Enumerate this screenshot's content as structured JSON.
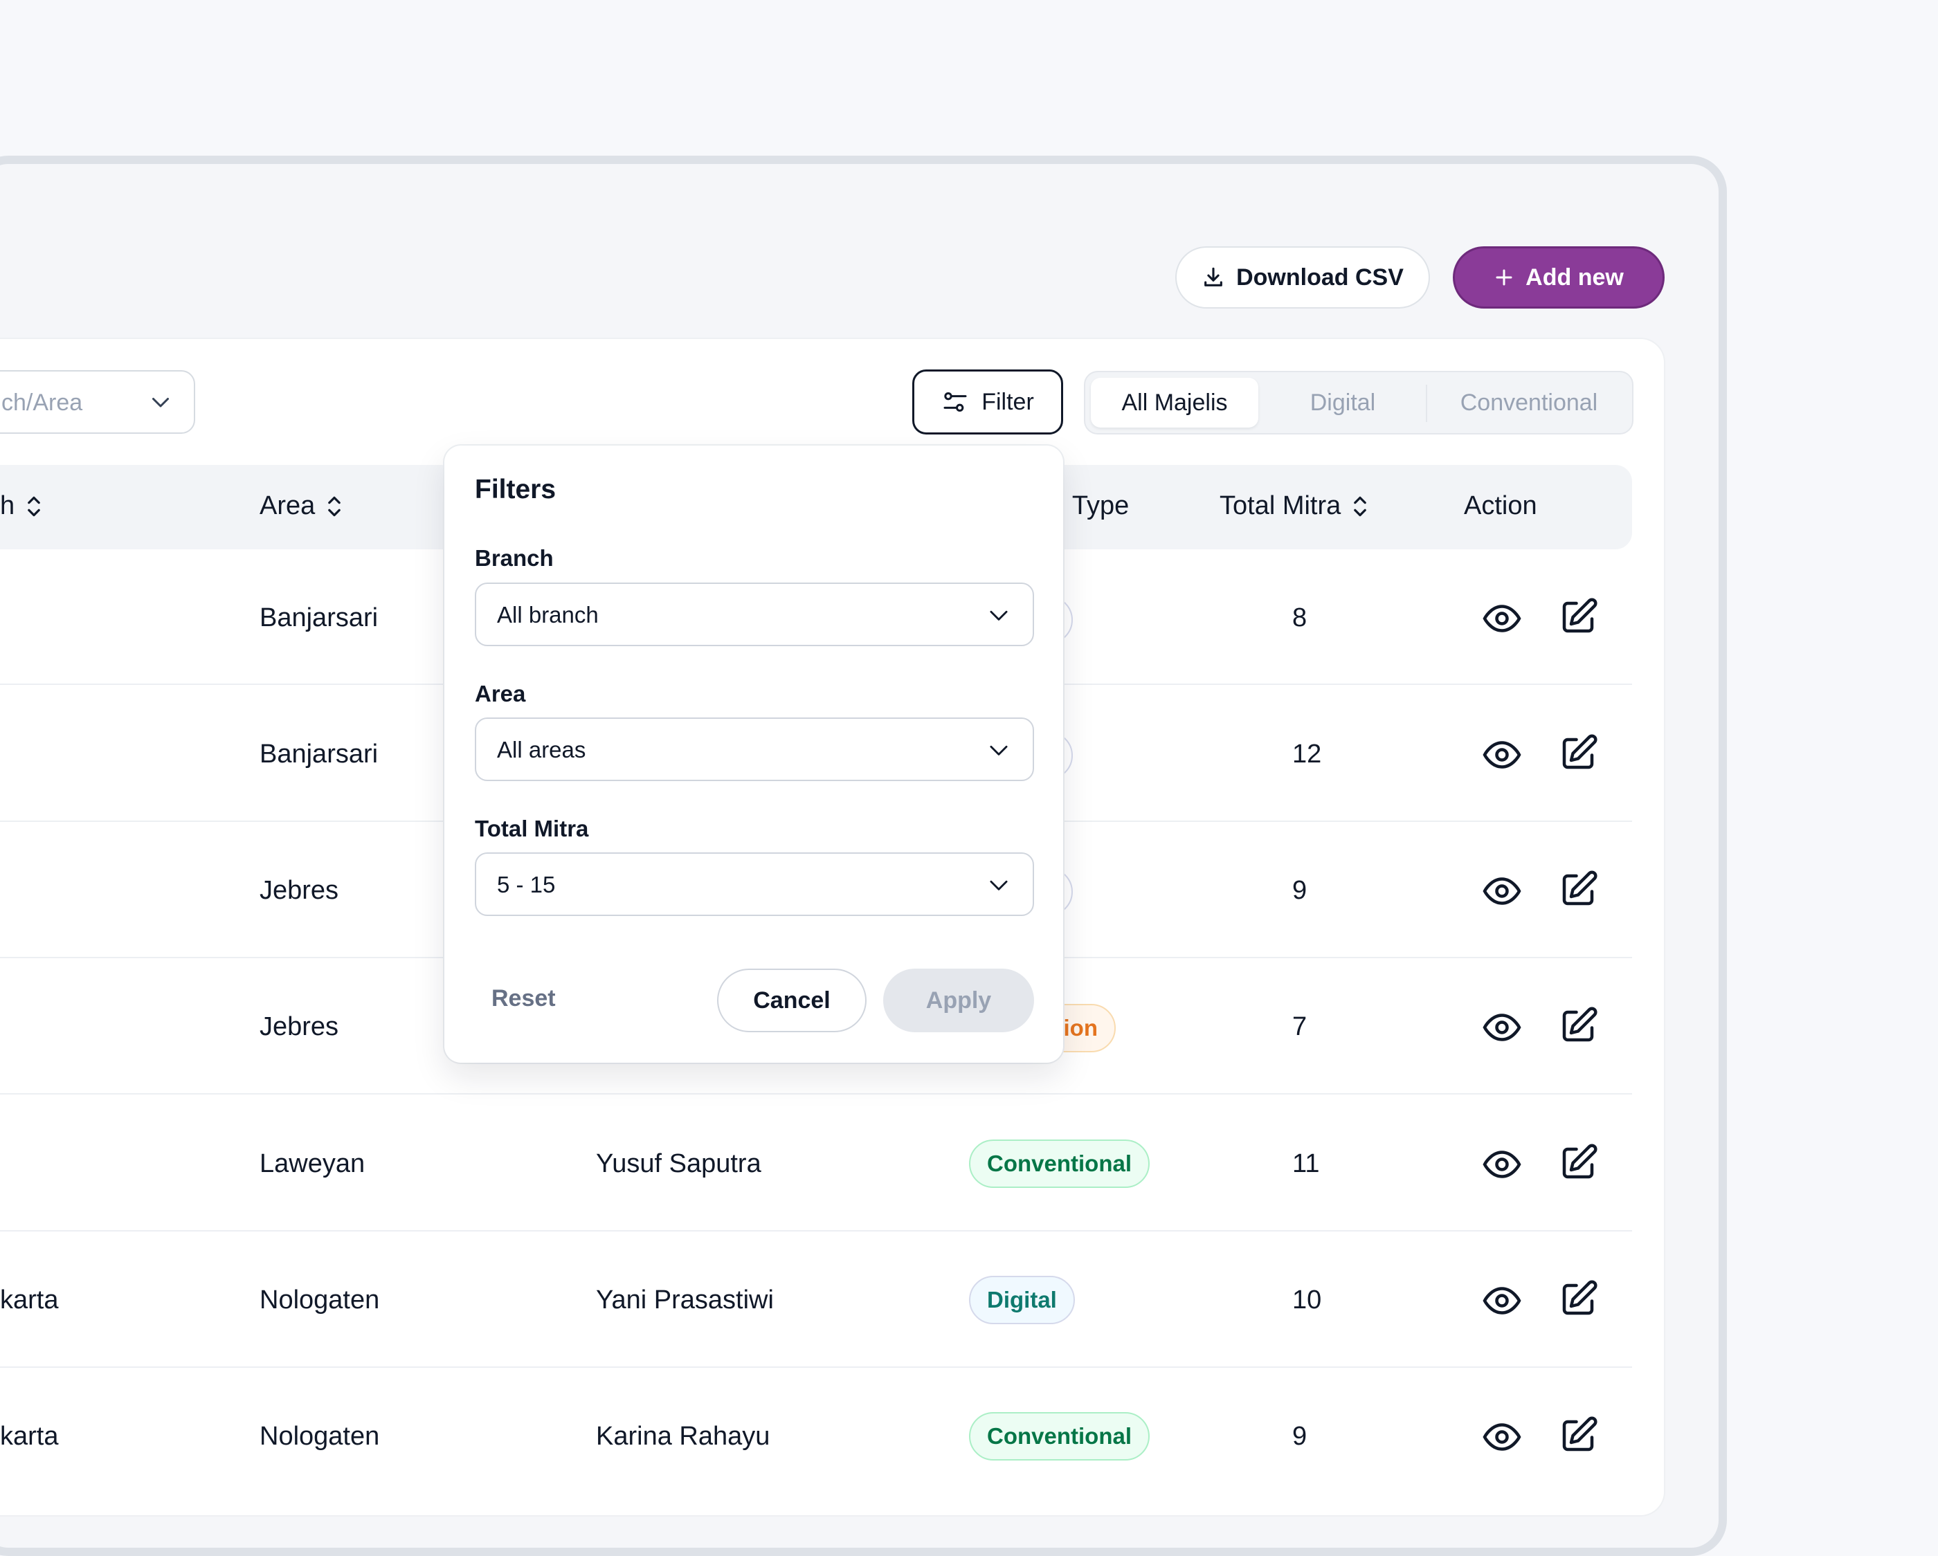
{
  "toolbar": {
    "download_label": "Download CSV",
    "add_label": "Add new"
  },
  "filters_bar": {
    "branch_area_select": "ch/Area",
    "filter_label": "Filter",
    "tabs": [
      {
        "label": "All Majelis",
        "active": true
      },
      {
        "label": "Digital",
        "active": false
      },
      {
        "label": "Conventional",
        "active": false
      }
    ]
  },
  "table": {
    "headers": {
      "branch": "h",
      "area": "Area",
      "type": "s Type",
      "total_mitra": "Total Mitra",
      "action": "Action"
    },
    "rows": [
      {
        "branch": "",
        "area": "Banjarsari",
        "name": "",
        "type": "",
        "total": "8"
      },
      {
        "branch": "",
        "area": "Banjarsari",
        "name": "",
        "type": "",
        "total": "12"
      },
      {
        "branch": "",
        "area": "Jebres",
        "name": "",
        "type": "",
        "total": "9"
      },
      {
        "branch": "",
        "area": "Jebres",
        "name": "",
        "type": "ion",
        "total": "7"
      },
      {
        "branch": "",
        "area": "Laweyan",
        "name": "Yusuf Saputra",
        "type": "Conventional",
        "total": "11"
      },
      {
        "branch": "karta",
        "area": "Nologaten",
        "name": "Yani Prasastiwi",
        "type": "Digital",
        "total": "10"
      },
      {
        "branch": "karta",
        "area": "Nologaten",
        "name": "Karina Rahayu",
        "type": "Conventional",
        "total": "9"
      }
    ]
  },
  "filter_popover": {
    "title": "Filters",
    "branch_label": "Branch",
    "branch_value": "All branch",
    "area_label": "Area",
    "area_value": "All areas",
    "total_label": "Total Mitra",
    "total_value": "5 - 15",
    "reset_label": "Reset",
    "cancel_label": "Cancel",
    "apply_label": "Apply"
  },
  "colors": {
    "primary": "#8a3b98",
    "conventional_text": "#067647",
    "digital_text": "#0e7a6e",
    "pending_text": "#e4741f"
  }
}
